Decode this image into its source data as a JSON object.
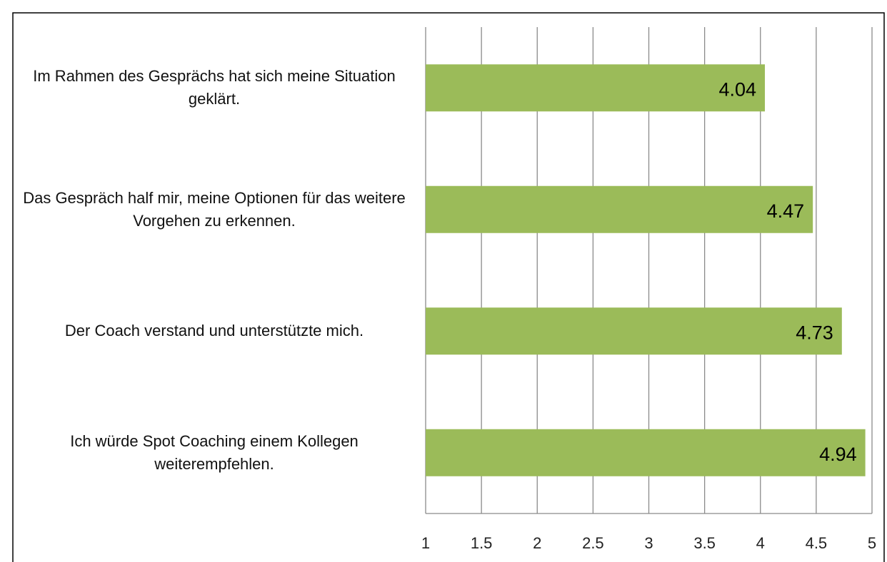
{
  "chart_data": {
    "type": "bar",
    "orientation": "horizontal",
    "categories": [
      "Im Rahmen des Gesprächs hat sich meine Situation geklärt.",
      "Das Gespräch half mir, meine Optionen für das weitere Vorgehen zu erkennen.",
      "Der Coach verstand und unterstützte mich.",
      "Ich würde Spot Coaching einem Kollegen weiterempfehlen."
    ],
    "values": [
      4.04,
      4.47,
      4.73,
      4.94
    ],
    "color": "#9bbb59",
    "xlim": [
      1,
      5
    ],
    "xticks": [
      1,
      1.5,
      2,
      2.5,
      3,
      3.5,
      4,
      4.5,
      5
    ],
    "grid": true
  }
}
